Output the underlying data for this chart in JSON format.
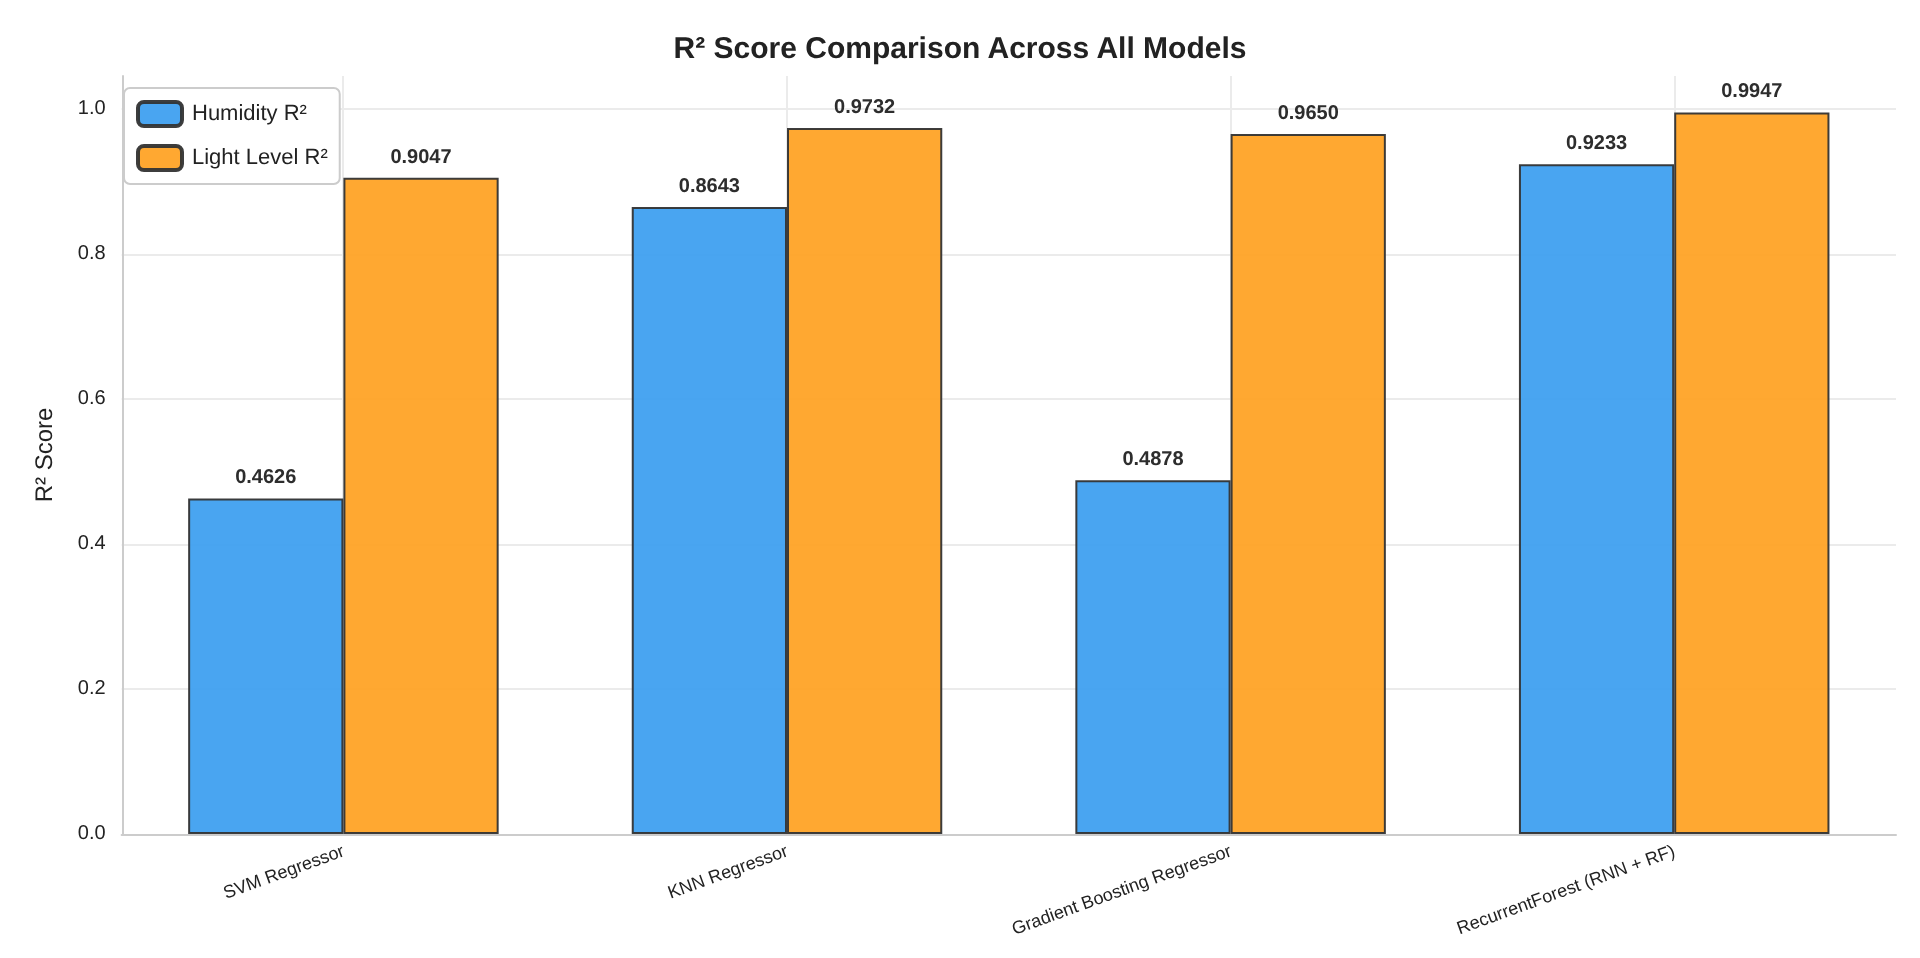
{
  "chart_data": {
    "type": "bar",
    "title": "R² Score Comparison Across All Models",
    "ylabel": "R² Score",
    "categories": [
      "SVM Regressor",
      "KNN Regressor",
      "Gradient Boosting Regressor",
      "RecurrentForest (RNN + RF)"
    ],
    "series": [
      {
        "name": "Humidity R²",
        "color": "#3fa0f0",
        "values": [
          0.4626,
          0.8643,
          0.4878,
          0.9233
        ],
        "value_labels": [
          "0.4626",
          "0.8643",
          "0.4878",
          "0.9233"
        ]
      },
      {
        "name": "Light Level R²",
        "color": "#ffa326",
        "values": [
          0.9047,
          0.9732,
          0.965,
          0.9947
        ],
        "value_labels": [
          "0.9047",
          "0.9732",
          "0.9650",
          "0.9947"
        ]
      }
    ],
    "ylim": [
      0,
      1.045
    ],
    "yticks": [
      {
        "value": 0,
        "label": "0.0"
      },
      {
        "value": 0.2,
        "label": "0.2"
      },
      {
        "value": 0.4,
        "label": "0.4"
      },
      {
        "value": 0.6,
        "label": "0.6"
      },
      {
        "value": 0.8,
        "label": "0.8"
      },
      {
        "value": 1,
        "label": "1.0"
      }
    ],
    "grid": true,
    "legend": "top left"
  }
}
